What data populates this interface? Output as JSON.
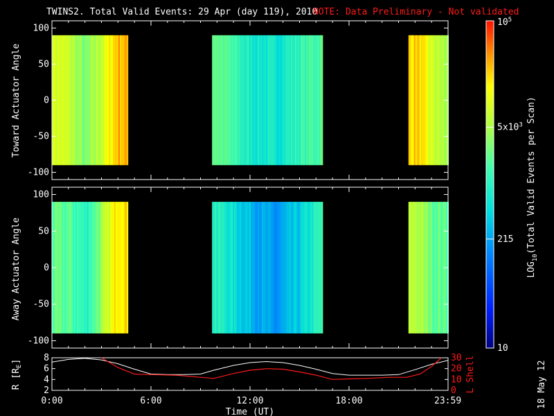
{
  "title": {
    "main": "TWINS2. Total Valid Events: 29 Apr (day 119), 2010",
    "note": "NOTE: Data Preliminary - Not validated"
  },
  "footer_stamp": "18 May 12",
  "colors": {
    "note": "#ff1a1a",
    "background": "#000000",
    "frame": "#ffffff",
    "lshell_line": "#ff1a1a",
    "r_line": "#ffffff"
  },
  "colorbar": {
    "label": "LOG10(Total Valid Events per Scan)",
    "label_parts": {
      "pre": "LOG",
      "sub": "10",
      "post": "(Total Valid Events per Scan)"
    },
    "ticks": [
      {
        "text": "10^5",
        "base": "10",
        "exp": "5",
        "value": 100000
      },
      {
        "text": "5x10^3",
        "base": "5x10",
        "exp": "3",
        "value": 5000
      },
      {
        "text": "215",
        "base": "215",
        "exp": "",
        "value": 215
      },
      {
        "text": "10",
        "base": "10",
        "exp": "",
        "value": 10
      }
    ],
    "min": 10,
    "max": 100000,
    "scale": "log"
  },
  "time_axis": {
    "label": "Time (UT)",
    "ticks": [
      "0:00",
      "6:00",
      "12:00",
      "18:00",
      "23:59"
    ],
    "tick_hours": [
      0,
      6,
      12,
      18,
      23.983
    ]
  },
  "chart_data": [
    {
      "type": "heatmap",
      "ylabel": "Toward Actuator Angle",
      "xlim": [
        0,
        24
      ],
      "ylim": [
        -110,
        110
      ],
      "y_ticks": [
        100,
        50,
        0,
        -50,
        -100
      ],
      "data_y_range": [
        -90,
        90
      ],
      "coverage_hours": [
        [
          -0.3,
          4.6
        ],
        [
          9.7,
          16.4
        ],
        [
          21.6,
          24.0
        ]
      ],
      "level_profile": [
        {
          "hour": 0.0,
          "log10_events": 4.0
        },
        {
          "hour": 1.0,
          "log10_events": 3.85
        },
        {
          "hour": 2.0,
          "log10_events": 3.4
        },
        {
          "hour": 3.0,
          "log10_events": 3.9
        },
        {
          "hour": 4.0,
          "log10_events": 4.5
        },
        {
          "hour": 10.0,
          "log10_events": 3.4
        },
        {
          "hour": 12.0,
          "log10_events": 2.9
        },
        {
          "hour": 13.5,
          "log10_events": 2.8
        },
        {
          "hour": 15.0,
          "log10_events": 3.1
        },
        {
          "hour": 16.3,
          "log10_events": 3.3
        },
        {
          "hour": 22.0,
          "log10_events": 4.4
        },
        {
          "hour": 23.0,
          "log10_events": 3.9
        },
        {
          "hour": 24.0,
          "log10_events": 3.6
        }
      ]
    },
    {
      "type": "heatmap",
      "ylabel": "Away Actuator Angle",
      "xlim": [
        0,
        24
      ],
      "ylim": [
        -110,
        110
      ],
      "y_ticks": [
        100,
        50,
        0,
        -50,
        -100
      ],
      "data_y_range": [
        -90,
        90
      ],
      "coverage_hours": [
        [
          -0.3,
          4.6
        ],
        [
          9.7,
          16.4
        ],
        [
          21.6,
          24.0
        ]
      ],
      "level_profile": [
        {
          "hour": 0.0,
          "log10_events": 3.3
        },
        {
          "hour": 1.0,
          "log10_events": 3.3
        },
        {
          "hour": 2.0,
          "log10_events": 3.0
        },
        {
          "hour": 3.0,
          "log10_events": 3.6
        },
        {
          "hour": 4.0,
          "log10_events": 4.4
        },
        {
          "hour": 10.0,
          "log10_events": 3.0
        },
        {
          "hour": 12.0,
          "log10_events": 2.5
        },
        {
          "hour": 13.5,
          "log10_events": 2.2
        },
        {
          "hour": 15.0,
          "log10_events": 2.6
        },
        {
          "hour": 16.3,
          "log10_events": 3.1
        },
        {
          "hour": 22.0,
          "log10_events": 3.8
        },
        {
          "hour": 23.0,
          "log10_events": 3.4
        },
        {
          "hour": 24.0,
          "log10_events": 3.3
        }
      ]
    },
    {
      "type": "line",
      "ylabel_left": "R [RE]",
      "ylabel_left_parts": {
        "pre": "R [R",
        "sub": "E",
        "post": "]"
      },
      "ylabel_right": "L Shell",
      "ylim_left": [
        2,
        8
      ],
      "y_ticks_left": [
        2,
        4,
        6,
        8
      ],
      "ylim_right": [
        0,
        30
      ],
      "y_ticks_right": [
        0,
        10,
        20,
        30
      ],
      "xlim": [
        0,
        24
      ],
      "series": [
        {
          "name": "R [RE]",
          "axis": "left",
          "x": [
            0,
            1,
            2,
            3,
            4,
            5,
            6,
            7,
            8,
            9,
            9.8,
            11,
            12,
            13,
            14,
            15,
            16,
            17,
            18,
            19,
            20,
            21,
            22,
            23,
            23.98
          ],
          "y": [
            7.2,
            7.7,
            7.9,
            7.6,
            6.9,
            5.9,
            5.0,
            4.9,
            4.9,
            5.0,
            5.7,
            6.6,
            7.1,
            7.3,
            7.1,
            6.6,
            5.9,
            5.1,
            4.8,
            4.8,
            4.8,
            4.9,
            5.8,
            6.8,
            7.5
          ]
        },
        {
          "name": "L Shell",
          "axis": "right",
          "x": [
            3.0,
            4.0,
            5.0,
            6.0,
            7.5,
            9.0,
            9.8,
            11.0,
            12.0,
            13.0,
            14.0,
            15.0,
            16.0,
            17.0,
            18.0,
            19.0,
            20.5,
            21.5,
            22.3,
            23.0,
            23.6
          ],
          "y": [
            30,
            21,
            15,
            14.5,
            14,
            12,
            11,
            15.5,
            18.5,
            20,
            19.5,
            17,
            14,
            10,
            10.5,
            11,
            12,
            12,
            15,
            22,
            30
          ]
        }
      ]
    }
  ]
}
